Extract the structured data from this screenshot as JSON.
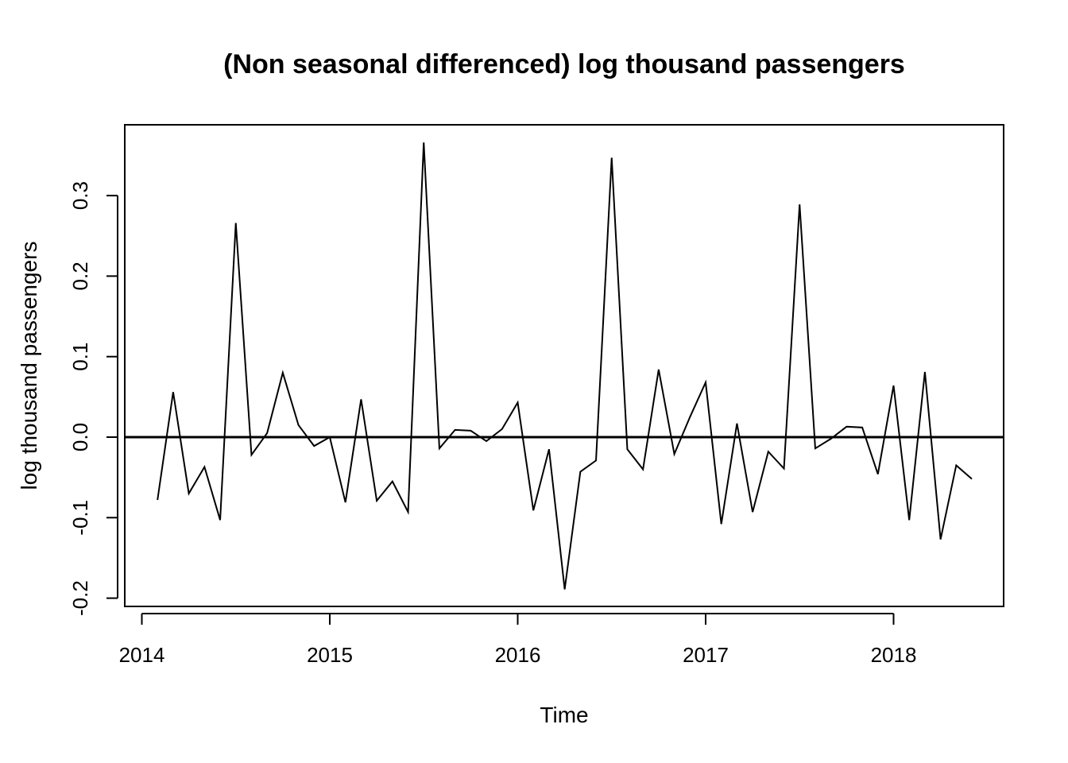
{
  "chart_data": {
    "type": "line",
    "title": "(Non seasonal differenced) log thousand passengers",
    "xlabel": "Time",
    "ylabel": "log thousand passengers",
    "xlim": [
      2014.0,
      2018.5
    ],
    "ylim": [
      -0.21,
      0.39
    ],
    "x_ticks": [
      {
        "value": 2014,
        "label": "2014"
      },
      {
        "value": 2015,
        "label": "2015"
      },
      {
        "value": 2016,
        "label": "2016"
      },
      {
        "value": 2017,
        "label": "2017"
      },
      {
        "value": 2018,
        "label": "2018"
      }
    ],
    "y_ticks": [
      {
        "value": -0.2,
        "label": "-0.2"
      },
      {
        "value": -0.1,
        "label": "-0.1"
      },
      {
        "value": 0.0,
        "label": "0.0"
      },
      {
        "value": 0.1,
        "label": "0.1"
      },
      {
        "value": 0.2,
        "label": "0.2"
      },
      {
        "value": 0.3,
        "label": "0.3"
      }
    ],
    "reference_line": {
      "y": 0.0
    },
    "grid": false,
    "series": [
      {
        "start": 2014.0833,
        "frequency": 12,
        "values": [
          -0.078,
          0.056,
          -0.07,
          -0.037,
          -0.103,
          0.266,
          -0.022,
          0.005,
          0.08,
          0.015,
          -0.011,
          0.0,
          -0.081,
          0.047,
          -0.079,
          -0.055,
          -0.093,
          0.366,
          -0.014,
          0.009,
          0.008,
          -0.005,
          0.01,
          0.043,
          -0.091,
          -0.015,
          -0.189,
          -0.043,
          -0.029,
          0.347,
          -0.015,
          -0.04,
          0.084,
          -0.021,
          0.025,
          0.068,
          -0.108,
          0.017,
          -0.093,
          -0.018,
          -0.039,
          0.289,
          -0.014,
          -0.002,
          0.013,
          0.012,
          -0.046,
          0.064,
          -0.103,
          0.081,
          -0.127,
          -0.035,
          -0.052
        ]
      }
    ]
  }
}
